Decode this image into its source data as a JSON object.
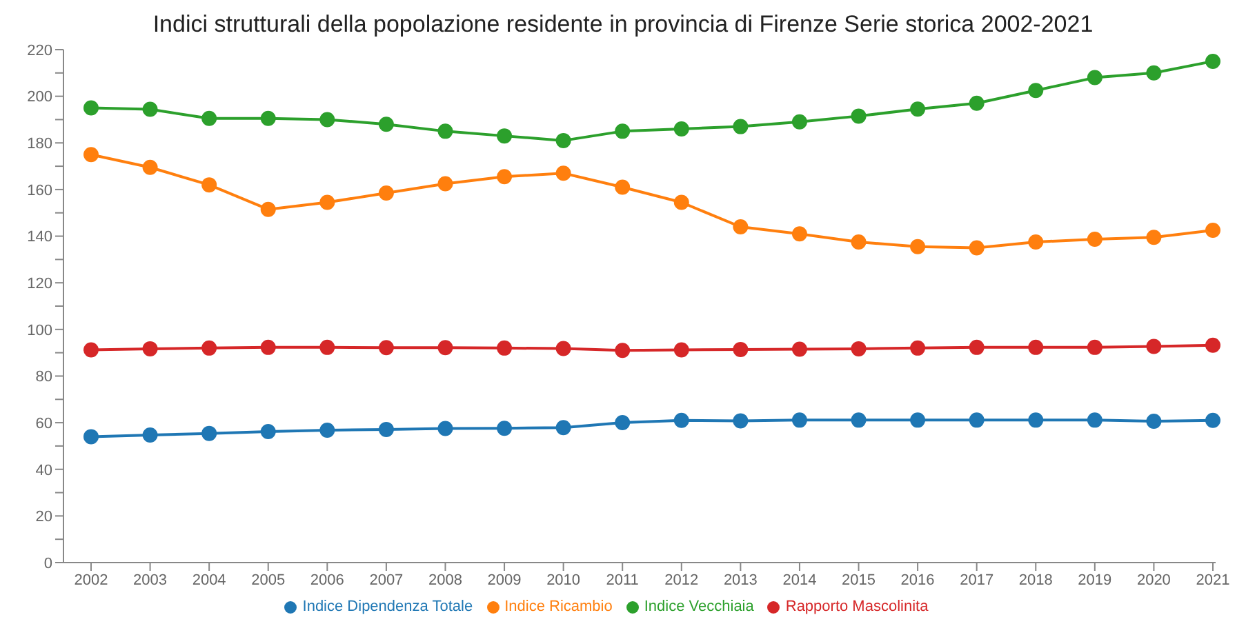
{
  "chart_data": {
    "type": "line",
    "title": "Indici strutturali della popolazione residente in provincia di Firenze Serie storica 2002-2021",
    "categories": [
      "2002",
      "2003",
      "2004",
      "2005",
      "2006",
      "2007",
      "2008",
      "2009",
      "2010",
      "2011",
      "2012",
      "2013",
      "2014",
      "2015",
      "2016",
      "2017",
      "2018",
      "2019",
      "2020",
      "2021"
    ],
    "series": [
      {
        "name": "Indice Dipendenza Totale",
        "color": "#1f77b4",
        "values": [
          54,
          54.7,
          55.4,
          56.2,
          56.8,
          57.1,
          57.5,
          57.6,
          57.9,
          60,
          61,
          60.8,
          61.1,
          61.1,
          61.1,
          61.1,
          61.1,
          61.1,
          60.6,
          61
        ]
      },
      {
        "name": "Indice Ricambio",
        "color": "#ff7f0e",
        "values": [
          175,
          169.5,
          162,
          151.5,
          154.5,
          158.5,
          162.5,
          165.5,
          167,
          161,
          154.5,
          144,
          141,
          137.5,
          135.5,
          135,
          137.5,
          138.7,
          139.5,
          142.5
        ]
      },
      {
        "name": "Indice Vecchiaia",
        "color": "#2ca02c",
        "values": [
          195,
          194.4,
          190.5,
          190.5,
          190,
          188,
          185,
          183,
          181,
          185,
          186,
          187,
          189,
          191.5,
          194.5,
          197,
          202.5,
          208,
          210,
          215
        ]
      },
      {
        "name": "Rapporto Mascolinita",
        "color": "#d62728",
        "values": [
          91.2,
          91.7,
          92,
          92.3,
          92.3,
          92.2,
          92.2,
          92,
          91.8,
          91,
          91.2,
          91.4,
          91.5,
          91.7,
          92,
          92.3,
          92.3,
          92.3,
          92.7,
          93.2
        ]
      }
    ],
    "ylim": [
      0,
      220
    ],
    "yticks": [
      0,
      {
        "value": 10,
        "label": null
      },
      20,
      {
        "value": 30,
        "label": null
      },
      40,
      {
        "value": 50,
        "label": null
      },
      60,
      {
        "value": 70,
        "label": null
      },
      80,
      {
        "value": 90,
        "label": null
      },
      100,
      {
        "value": 110,
        "label": null
      },
      120,
      {
        "value": 130,
        "label": null
      },
      140,
      {
        "value": 150,
        "label": null
      },
      160,
      {
        "value": 170,
        "label": null
      },
      180,
      {
        "value": 190,
        "label": null
      },
      200,
      {
        "value": 210,
        "label": null
      },
      220
    ],
    "grid": false,
    "legend": "bottom",
    "marker": "circle",
    "line_style": "solid"
  }
}
